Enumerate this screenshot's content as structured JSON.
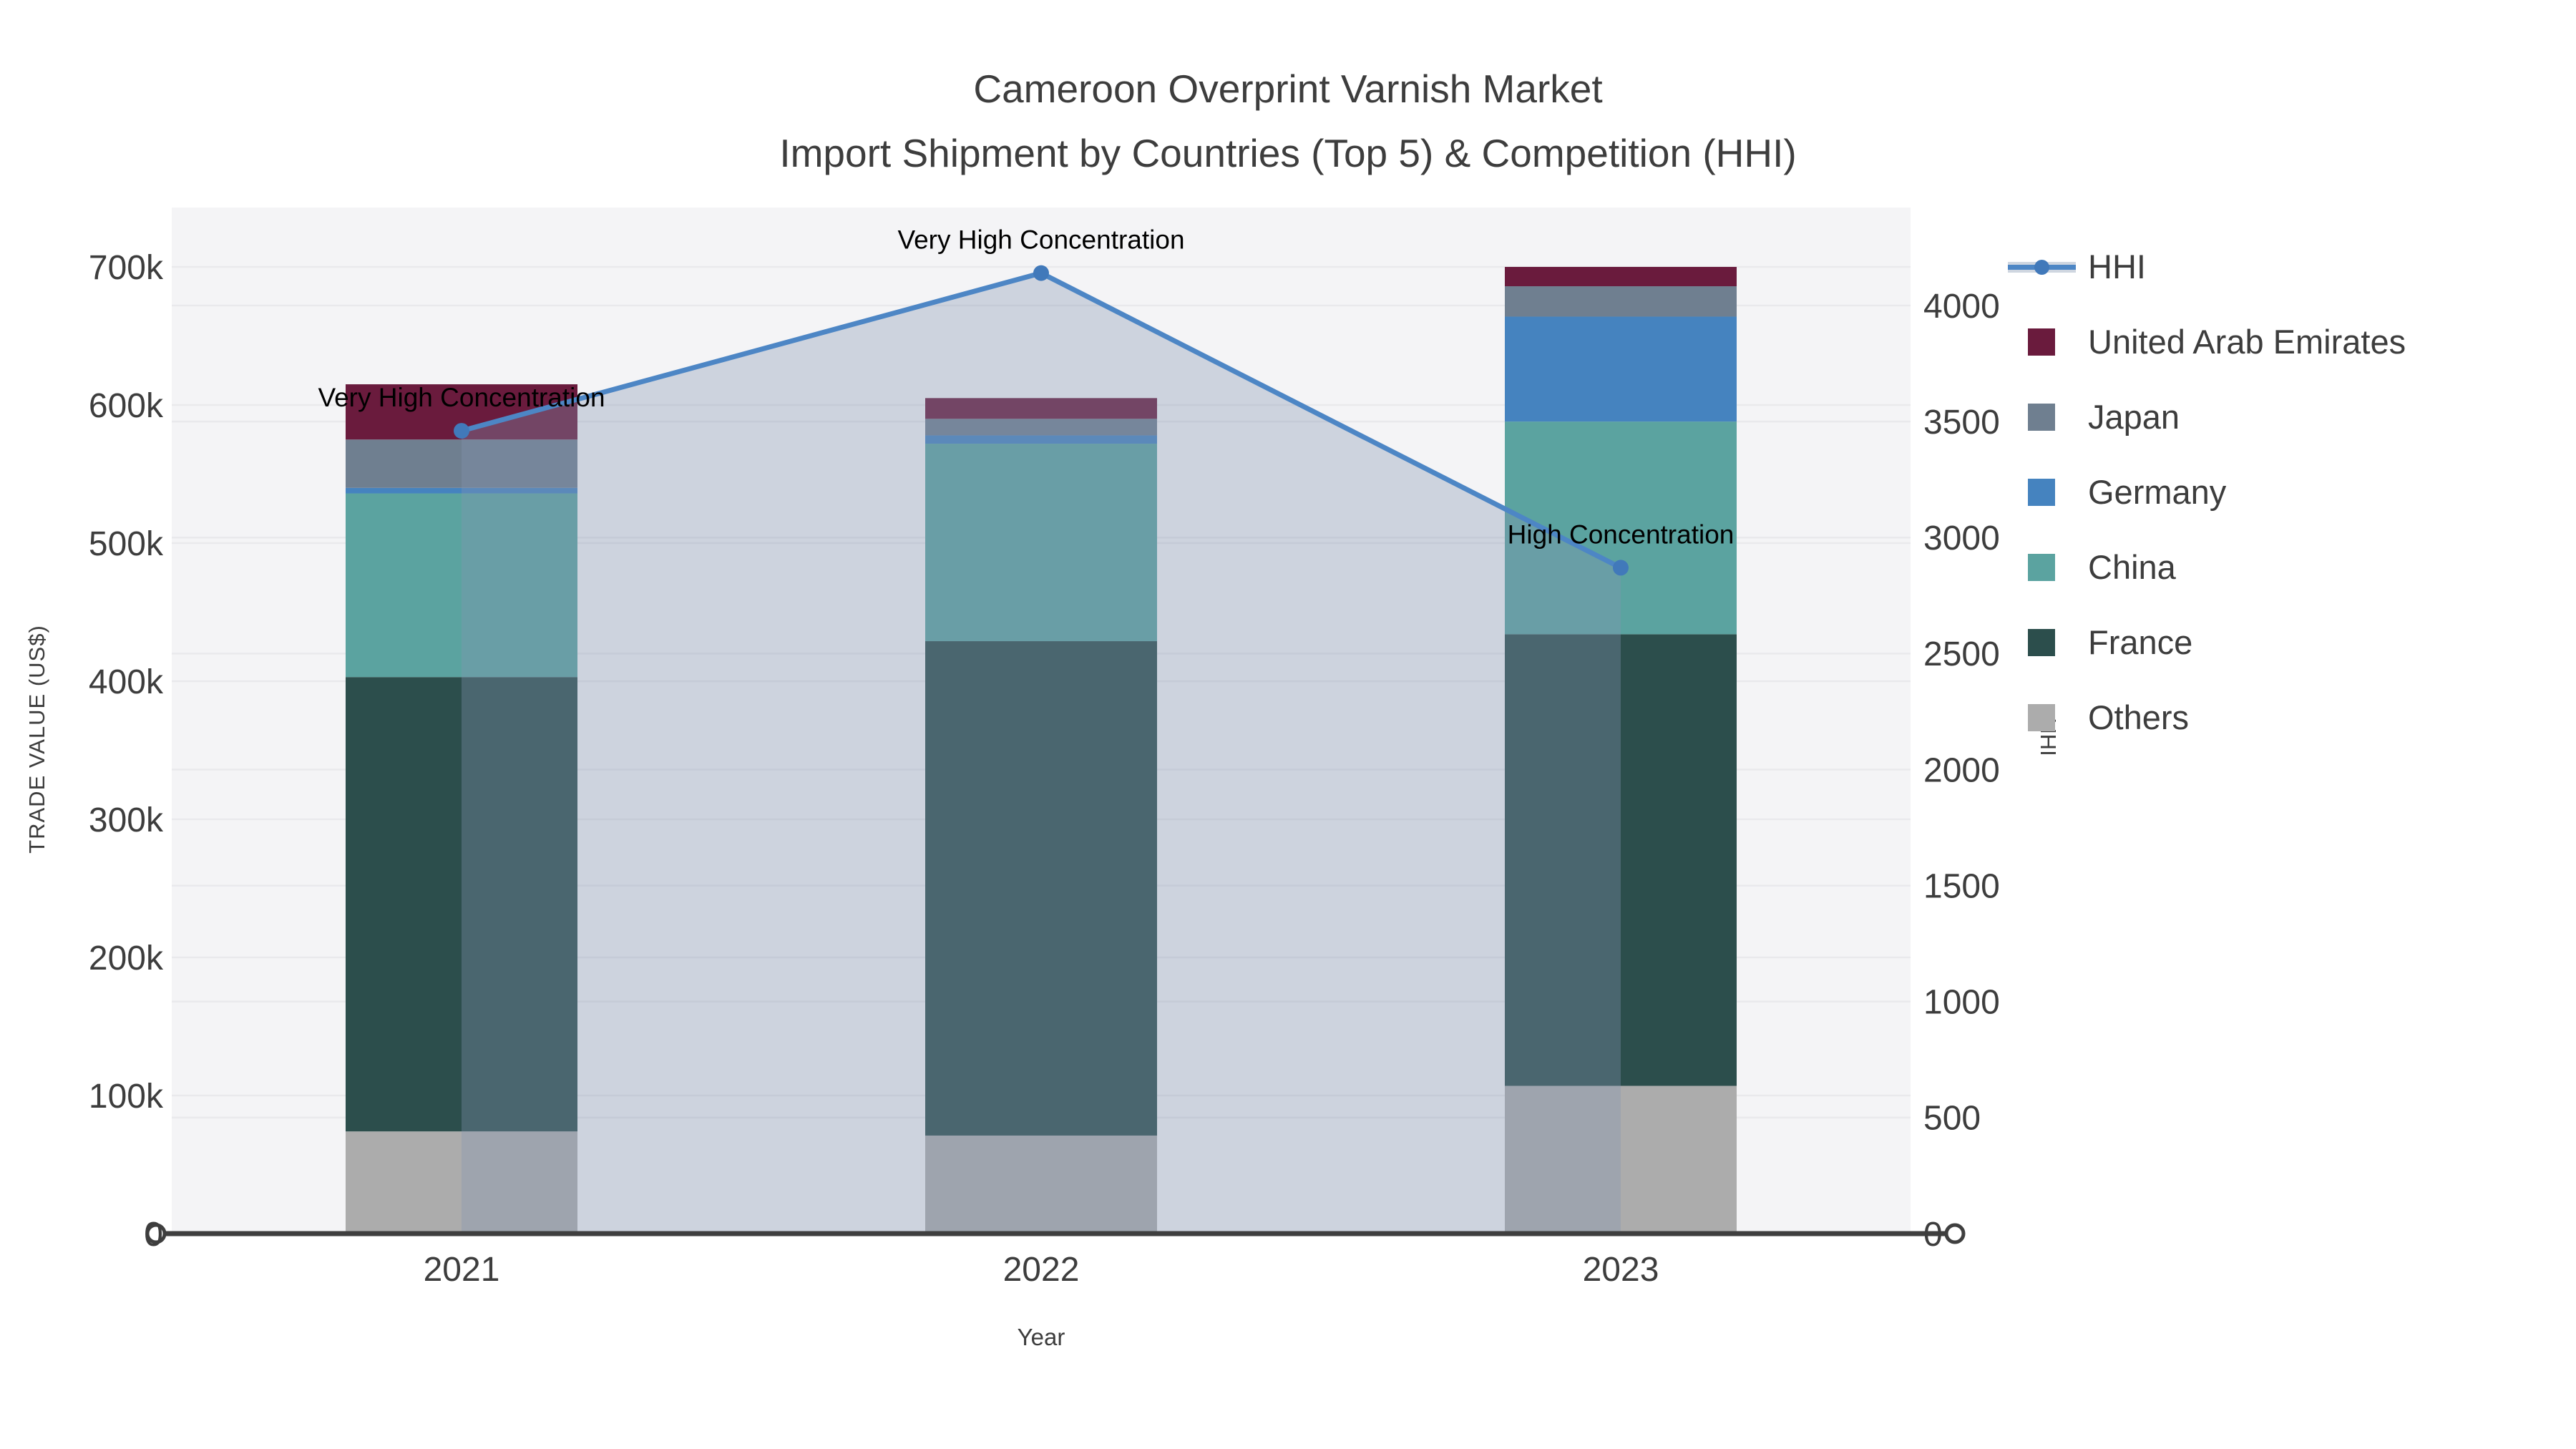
{
  "title": {
    "line1": "Cameroon Overprint Varnish Market",
    "line2": "Import Shipment by Countries (Top 5) & Competition (HHI)"
  },
  "axes": {
    "x_title": "Year",
    "y_left_title": "TRADE VALUE (US$)",
    "y_right_title": "HHI",
    "y_left_tick_labels": [
      "0",
      "100k",
      "200k",
      "300k",
      "400k",
      "500k",
      "600k",
      "700k"
    ],
    "y_right_tick_labels": [
      "0",
      "500",
      "1000",
      "1500",
      "2000",
      "2500",
      "3000",
      "3500",
      "4000"
    ]
  },
  "legend": {
    "items": [
      {
        "label": "HHI",
        "type": "line",
        "color": "#4d86c5"
      },
      {
        "label": "United Arab Emirates",
        "type": "swatch",
        "color": "#6a1b3d"
      },
      {
        "label": "Japan",
        "type": "swatch",
        "color": "#6f7f90"
      },
      {
        "label": "Germany",
        "type": "swatch",
        "color": "#4583bf"
      },
      {
        "label": "China",
        "type": "swatch",
        "color": "#5ba3a0"
      },
      {
        "label": "France",
        "type": "swatch",
        "color": "#2c4e4c"
      },
      {
        "label": "Others",
        "type": "swatch",
        "color": "#acacac"
      }
    ]
  },
  "chart_data": {
    "type": "bar",
    "subtype": "stacked-bars-with-line-on-secondary-axis",
    "categories": [
      "2021",
      "2022",
      "2023"
    ],
    "series": [
      {
        "name": "Others",
        "color": "#acacac",
        "values": [
          74000,
          71000,
          107000
        ]
      },
      {
        "name": "France",
        "color": "#2c4e4c",
        "values": [
          329000,
          358000,
          327000
        ]
      },
      {
        "name": "China",
        "color": "#5ba3a0",
        "values": [
          133000,
          143000,
          154000
        ]
      },
      {
        "name": "Germany",
        "color": "#4583bf",
        "values": [
          4000,
          6000,
          76000
        ]
      },
      {
        "name": "Japan",
        "color": "#6f7f90",
        "values": [
          35000,
          12000,
          22000
        ]
      },
      {
        "name": "United Arab Emirates",
        "color": "#6a1b3d",
        "values": [
          40000,
          15000,
          14000
        ]
      }
    ],
    "bar_totals": [
      615000,
      605000,
      700000
    ],
    "line_series": {
      "name": "HHI",
      "color": "#4d86c5",
      "area_fill": "rgba(132,150,178,0.35)",
      "values": [
        3460,
        4140,
        2870
      ],
      "axis": "right"
    },
    "annotations": [
      {
        "category": "2021",
        "text": "Very High Concentration"
      },
      {
        "category": "2022",
        "text": "Very High Concentration"
      },
      {
        "category": "2023",
        "text": "High Concentration"
      }
    ],
    "title": "Cameroon Overprint Varnish Market — Import Shipment by Countries (Top 5) & Competition (HHI)",
    "xlabel": "Year",
    "ylabel_left": "TRADE VALUE (US$)",
    "ylabel_right": "HHI",
    "ylim_left": [
      0,
      700000
    ],
    "ylim_right": [
      0,
      4000
    ],
    "grid": true,
    "legend_position": "right"
  },
  "colors": {
    "plot_background": "#f4f4f6",
    "gridline": "#e9e9ec",
    "axis_line": "#3f3f3f",
    "text": "#3d3d3d",
    "annotation_text": "#000000",
    "hhi_line": "#4d86c5",
    "hhi_marker": "#4179ba",
    "hhi_area": "rgba(132,150,178,0.35)",
    "legend_hhi_band": "#cfd6e0"
  }
}
